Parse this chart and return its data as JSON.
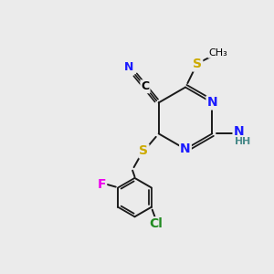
{
  "background_color": "#ebebeb",
  "atom_colors": {
    "C": "#000000",
    "N": "#1a1aff",
    "S": "#ccaa00",
    "F": "#ee00ee",
    "Cl": "#228B22",
    "H": "#4a8a8a",
    "NH2": "#1a1aff"
  },
  "bond_color": "#1a1a1a",
  "ring_bond_color": "#333333"
}
